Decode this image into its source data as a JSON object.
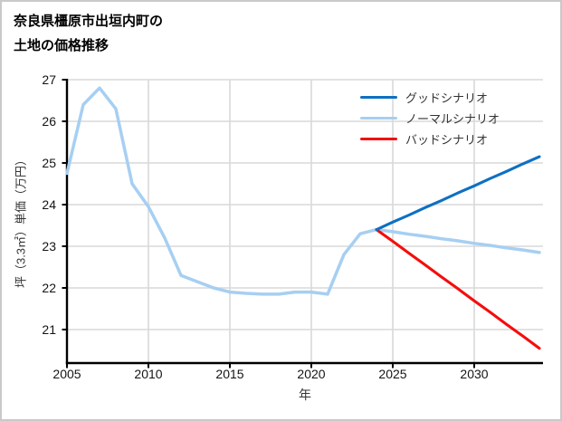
{
  "title": {
    "line1": "奈良県橿原市出垣内町の",
    "line2": "土地の価格推移"
  },
  "chart_data": {
    "type": "line",
    "title": "奈良県橿原市出垣内町の土地の価格推移",
    "xlabel": "年",
    "ylabel": "坪（3.3㎡）単価（万円）",
    "x_ticks": [
      2005,
      2010,
      2015,
      2020,
      2025,
      2030
    ],
    "y_ticks": [
      21,
      22,
      23,
      24,
      25,
      26,
      27
    ],
    "xlim": [
      2005,
      2034.2
    ],
    "ylim": [
      20.2,
      27.05
    ],
    "grid": true,
    "legend_position": "upper right",
    "colors": {
      "good": "#0e70c2",
      "normal": "#a6cff2",
      "bad": "#f50d0d",
      "gridline": "#d9d9d9",
      "spine": "#000000"
    },
    "series": [
      {
        "id": "normal-scenario",
        "name": "ノーマルシナリオ",
        "color": "#a6cff2",
        "width": 3.5,
        "x": [
          2005,
          2006,
          2007,
          2008,
          2009,
          2010,
          2011,
          2012,
          2013,
          2014,
          2015,
          2016,
          2017,
          2018,
          2019,
          2020,
          2021,
          2022,
          2023,
          2024,
          2025,
          2026,
          2027,
          2028,
          2029,
          2030,
          2031,
          2032,
          2033,
          2034
        ],
        "values": [
          24.75,
          26.4,
          26.8,
          26.3,
          24.5,
          23.95,
          23.2,
          22.3,
          22.15,
          22.0,
          21.9,
          21.87,
          21.85,
          21.85,
          21.9,
          21.9,
          21.85,
          22.8,
          23.3,
          23.4,
          23.35,
          23.29,
          23.24,
          23.18,
          23.13,
          23.07,
          23.02,
          22.96,
          22.91,
          22.85
        ]
      },
      {
        "id": "good-scenario",
        "name": "グッドシナリオ",
        "color": "#0e70c2",
        "width": 3.1,
        "x": [
          2024,
          2025,
          2026,
          2027,
          2028,
          2029,
          2030,
          2031,
          2032,
          2033,
          2034
        ],
        "values": [
          23.4,
          23.58,
          23.75,
          23.93,
          24.1,
          24.28,
          24.45,
          24.63,
          24.8,
          24.98,
          25.15
        ]
      },
      {
        "id": "bad-scenario",
        "name": "バッドシナリオ",
        "color": "#f50d0d",
        "width": 3.1,
        "x": [
          2024,
          2025,
          2026,
          2027,
          2028,
          2029,
          2030,
          2031,
          2032,
          2033,
          2034
        ],
        "values": [
          23.4,
          23.12,
          22.83,
          22.55,
          22.26,
          21.98,
          21.69,
          21.41,
          21.12,
          20.84,
          20.55
        ]
      }
    ],
    "legend": [
      {
        "label": "グッドシナリオ",
        "color": "#0e70c2"
      },
      {
        "label": "ノーマルシナリオ",
        "color": "#a6cff2"
      },
      {
        "label": "バッドシナリオ",
        "color": "#f50d0d"
      }
    ]
  }
}
